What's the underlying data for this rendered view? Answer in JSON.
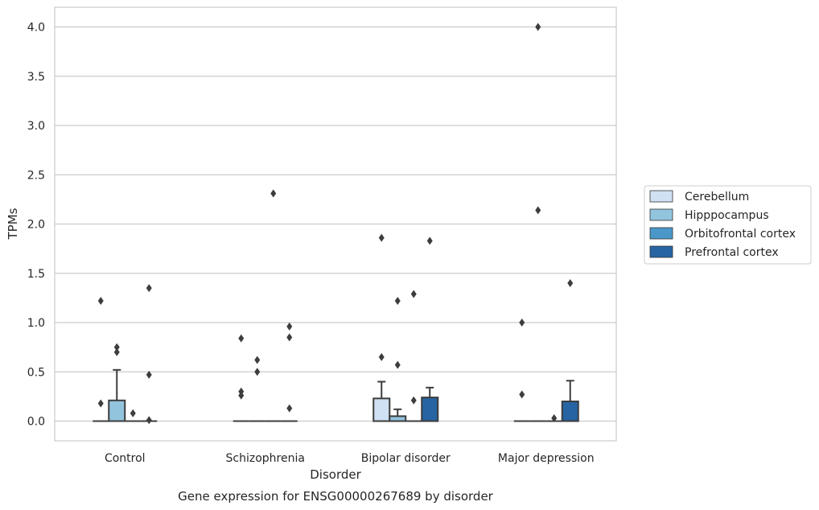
{
  "chart_data": {
    "type": "box",
    "title": "",
    "caption": "Gene expression for ENSG00000267689 by disorder",
    "xlabel": "Disorder",
    "ylabel": "TPMs",
    "categories": [
      "Control",
      "Schizophrenia",
      "Bipolar disorder",
      "Major depression"
    ],
    "ylim": [
      -0.2,
      4.2
    ],
    "yticks": [
      0.0,
      0.5,
      1.0,
      1.5,
      2.0,
      2.5,
      3.0,
      3.5,
      4.0
    ],
    "ytick_labels": [
      "0.0",
      "0.5",
      "1.0",
      "1.5",
      "2.0",
      "2.5",
      "3.0",
      "3.5",
      "4.0"
    ],
    "grid": true,
    "legend_position": "right",
    "series": [
      {
        "name": "Cerebellum",
        "color": "#cfe1f2",
        "boxes": [
          {
            "q1": 0,
            "median": 0,
            "q3": 0,
            "whisker_low": 0,
            "whisker_high": 0,
            "outliers": [
              1.22,
              0.18
            ]
          },
          {
            "q1": 0,
            "median": 0,
            "q3": 0,
            "whisker_low": 0,
            "whisker_high": 0,
            "outliers": [
              0.84,
              0.3,
              0.26
            ]
          },
          {
            "q1": 0,
            "median": 0,
            "q3": 0.23,
            "whisker_low": 0,
            "whisker_high": 0.4,
            "outliers": [
              1.86,
              0.65
            ]
          },
          {
            "q1": 0,
            "median": 0,
            "q3": 0,
            "whisker_low": 0,
            "whisker_high": 0,
            "outliers": [
              1.0,
              0.27
            ]
          }
        ]
      },
      {
        "name": "Hipppocampus",
        "color": "#93c4de",
        "boxes": [
          {
            "q1": 0,
            "median": 0,
            "q3": 0.21,
            "whisker_low": 0,
            "whisker_high": 0.52,
            "outliers": [
              0.75,
              0.7
            ]
          },
          {
            "q1": 0,
            "median": 0,
            "q3": 0,
            "whisker_low": 0,
            "whisker_high": 0,
            "outliers": [
              0.62,
              0.5
            ]
          },
          {
            "q1": 0,
            "median": 0,
            "q3": 0.05,
            "whisker_low": 0,
            "whisker_high": 0.12,
            "outliers": [
              1.22,
              0.57
            ]
          },
          {
            "q1": 0,
            "median": 0,
            "q3": 0,
            "whisker_low": 0,
            "whisker_high": 0,
            "outliers": [
              4.0,
              2.14
            ]
          }
        ]
      },
      {
        "name": "Orbitofrontal cortex",
        "color": "#4a98c9",
        "boxes": [
          {
            "q1": 0,
            "median": 0,
            "q3": 0,
            "whisker_low": 0,
            "whisker_high": 0,
            "outliers": [
              0.08
            ]
          },
          {
            "q1": 0,
            "median": 0,
            "q3": 0,
            "whisker_low": 0,
            "whisker_high": 0,
            "outliers": [
              2.31
            ]
          },
          {
            "q1": 0,
            "median": 0,
            "q3": 0,
            "whisker_low": 0,
            "whisker_high": 0,
            "outliers": [
              1.29,
              0.21
            ]
          },
          {
            "q1": 0,
            "median": 0,
            "q3": 0,
            "whisker_low": 0,
            "whisker_high": 0,
            "outliers": [
              0.03
            ]
          }
        ]
      },
      {
        "name": "Prefrontal cortex",
        "color": "#2764a3",
        "boxes": [
          {
            "q1": 0,
            "median": 0,
            "q3": 0,
            "whisker_low": 0,
            "whisker_high": 0,
            "outliers": [
              1.35,
              0.47,
              0.01
            ]
          },
          {
            "q1": 0,
            "median": 0,
            "q3": 0,
            "whisker_low": 0,
            "whisker_high": 0,
            "outliers": [
              0.96,
              0.85,
              0.13
            ]
          },
          {
            "q1": 0,
            "median": 0,
            "q3": 0.24,
            "whisker_low": 0,
            "whisker_high": 0.34,
            "outliers": [
              1.83
            ]
          },
          {
            "q1": 0,
            "median": 0,
            "q3": 0.2,
            "whisker_low": 0,
            "whisker_high": 0.41,
            "outliers": [
              1.4
            ]
          }
        ]
      }
    ]
  }
}
